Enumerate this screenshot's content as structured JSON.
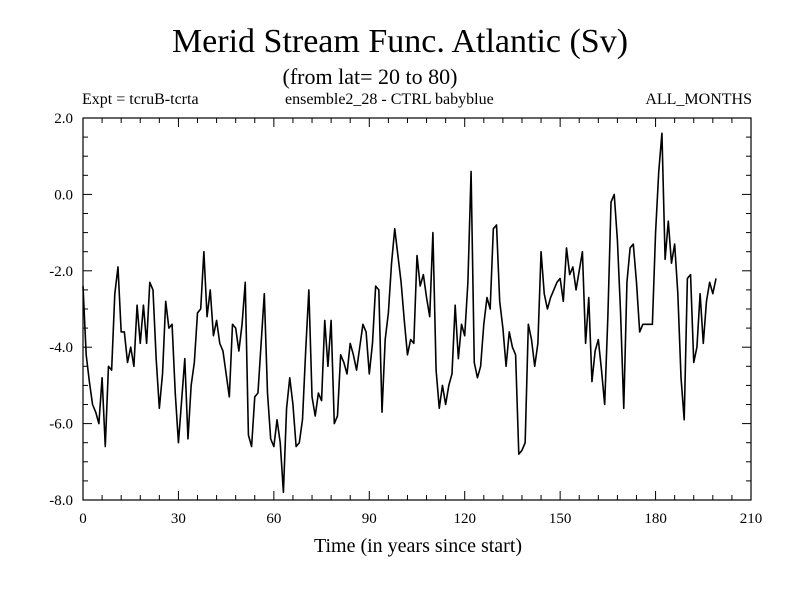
{
  "chart_data": {
    "type": "line",
    "title": "Merid Stream Func. Atlantic (Sv)",
    "subtitle": "(from lat= 20 to 80)",
    "annotations": {
      "expt": "Expt = tcruB-tcrta",
      "ensemble": "ensemble2_28 - CTRL babyblue",
      "months": "ALL_MONTHS"
    },
    "xlabel": "Time (in years since start)",
    "ylabel": "",
    "xlim": [
      0,
      210
    ],
    "ylim": [
      -8.0,
      2.0
    ],
    "xticks": [
      0,
      30,
      60,
      90,
      120,
      150,
      180,
      210
    ],
    "xtick_labels": [
      "0",
      "30",
      "60",
      "90",
      "120",
      "150",
      "180",
      "210"
    ],
    "yticks": [
      -8.0,
      -6.0,
      -4.0,
      -2.0,
      0.0,
      2.0
    ],
    "ytick_labels": [
      "-8.0",
      "-6.0",
      "-4.0",
      "-2.0",
      "0.0",
      "2.0"
    ],
    "series": [
      {
        "name": "Merid Stream Func.",
        "x": [
          0,
          1,
          2,
          3,
          4,
          5,
          6,
          7,
          8,
          9,
          10,
          11,
          12,
          13,
          14,
          15,
          16,
          17,
          18,
          19,
          20,
          21,
          22,
          23,
          24,
          25,
          26,
          27,
          28,
          29,
          30,
          31,
          32,
          33,
          34,
          35,
          36,
          37,
          38,
          39,
          40,
          41,
          42,
          43,
          44,
          45,
          46,
          47,
          48,
          49,
          50,
          51,
          52,
          53,
          54,
          55,
          56,
          57,
          58,
          59,
          60,
          61,
          62,
          63,
          64,
          65,
          66,
          67,
          68,
          69,
          70,
          71,
          72,
          73,
          74,
          75,
          76,
          77,
          78,
          79,
          80,
          81,
          82,
          83,
          84,
          85,
          86,
          87,
          88,
          89,
          90,
          91,
          92,
          93,
          94,
          95,
          96,
          97,
          98,
          99,
          100,
          101,
          102,
          103,
          104,
          105,
          106,
          107,
          108,
          109,
          110,
          111,
          112,
          113,
          114,
          115,
          116,
          117,
          118,
          119,
          120,
          121,
          122,
          123,
          124,
          125,
          126,
          127,
          128,
          129,
          130,
          131,
          132,
          133,
          134,
          135,
          136,
          137,
          138,
          139,
          140,
          141,
          142,
          143,
          144,
          145,
          146,
          147,
          148,
          149,
          150,
          151,
          152,
          153,
          154,
          155,
          156,
          157,
          158,
          159,
          160,
          161,
          162,
          163,
          164,
          165,
          166,
          167,
          168,
          169,
          170,
          171,
          172,
          173,
          174,
          175,
          176,
          177,
          178,
          179,
          180,
          181,
          182,
          183,
          184,
          185,
          186,
          187,
          188,
          189,
          190,
          191,
          192,
          193,
          194,
          195,
          196,
          197,
          198,
          199
        ],
        "values": [
          -2.4,
          -4.2,
          -4.9,
          -5.5,
          -5.7,
          -6.0,
          -4.8,
          -6.6,
          -4.5,
          -4.6,
          -2.6,
          -1.9,
          -3.6,
          -3.6,
          -4.4,
          -4.0,
          -4.5,
          -2.9,
          -3.9,
          -2.9,
          -3.9,
          -2.3,
          -2.5,
          -4.3,
          -5.6,
          -4.7,
          -2.8,
          -3.5,
          -3.4,
          -5.2,
          -6.5,
          -5.4,
          -4.3,
          -6.4,
          -5.0,
          -4.4,
          -3.1,
          -3.0,
          -1.5,
          -3.2,
          -2.5,
          -3.7,
          -3.3,
          -3.9,
          -4.1,
          -4.7,
          -5.3,
          -3.4,
          -3.5,
          -4.1,
          -3.4,
          -2.3,
          -6.3,
          -6.6,
          -5.3,
          -5.2,
          -3.9,
          -2.6,
          -5.2,
          -6.4,
          -6.6,
          -5.9,
          -6.5,
          -7.8,
          -5.6,
          -4.8,
          -5.5,
          -6.6,
          -6.5,
          -5.9,
          -4.1,
          -2.5,
          -5.3,
          -5.8,
          -5.2,
          -5.4,
          -3.3,
          -4.5,
          -3.3,
          -6.0,
          -5.8,
          -4.2,
          -4.4,
          -4.7,
          -3.9,
          -4.2,
          -4.6,
          -4.0,
          -3.4,
          -3.6,
          -4.7,
          -3.9,
          -2.4,
          -2.5,
          -5.7,
          -3.8,
          -3.1,
          -1.8,
          -0.9,
          -1.6,
          -2.3,
          -3.3,
          -4.2,
          -3.8,
          -3.9,
          -1.6,
          -2.4,
          -2.1,
          -2.7,
          -3.2,
          -1.0,
          -4.6,
          -5.6,
          -5.0,
          -5.5,
          -5.0,
          -4.7,
          -2.9,
          -4.3,
          -3.4,
          -3.7,
          -2.3,
          0.6,
          -4.4,
          -4.8,
          -4.5,
          -3.4,
          -2.7,
          -3.0,
          -0.9,
          -0.8,
          -2.8,
          -3.5,
          -4.5,
          -3.6,
          -4.0,
          -4.2,
          -6.8,
          -6.7,
          -6.5,
          -3.4,
          -3.8,
          -4.5,
          -3.9,
          -1.5,
          -2.6,
          -3.0,
          -2.7,
          -2.5,
          -2.3,
          -2.2,
          -2.8,
          -1.4,
          -2.1,
          -1.9,
          -2.5,
          -2.0,
          -1.5,
          -3.9,
          -2.7,
          -4.9,
          -4.1,
          -3.8,
          -4.6,
          -5.5,
          -3.2,
          -0.2,
          0.0,
          -1.2,
          -3.1,
          -5.6,
          -2.3,
          -1.4,
          -1.3,
          -2.3,
          -3.6,
          -3.4,
          -3.4,
          -3.4,
          -3.4,
          -1.0,
          0.6,
          1.6,
          -1.7,
          -0.7,
          -1.8,
          -1.3,
          -2.6,
          -4.8,
          -5.9,
          -2.2,
          -2.1,
          -4.4,
          -4.0,
          -2.6,
          -3.9,
          -2.8,
          -2.3,
          -2.6,
          -2.2
        ]
      }
    ]
  }
}
